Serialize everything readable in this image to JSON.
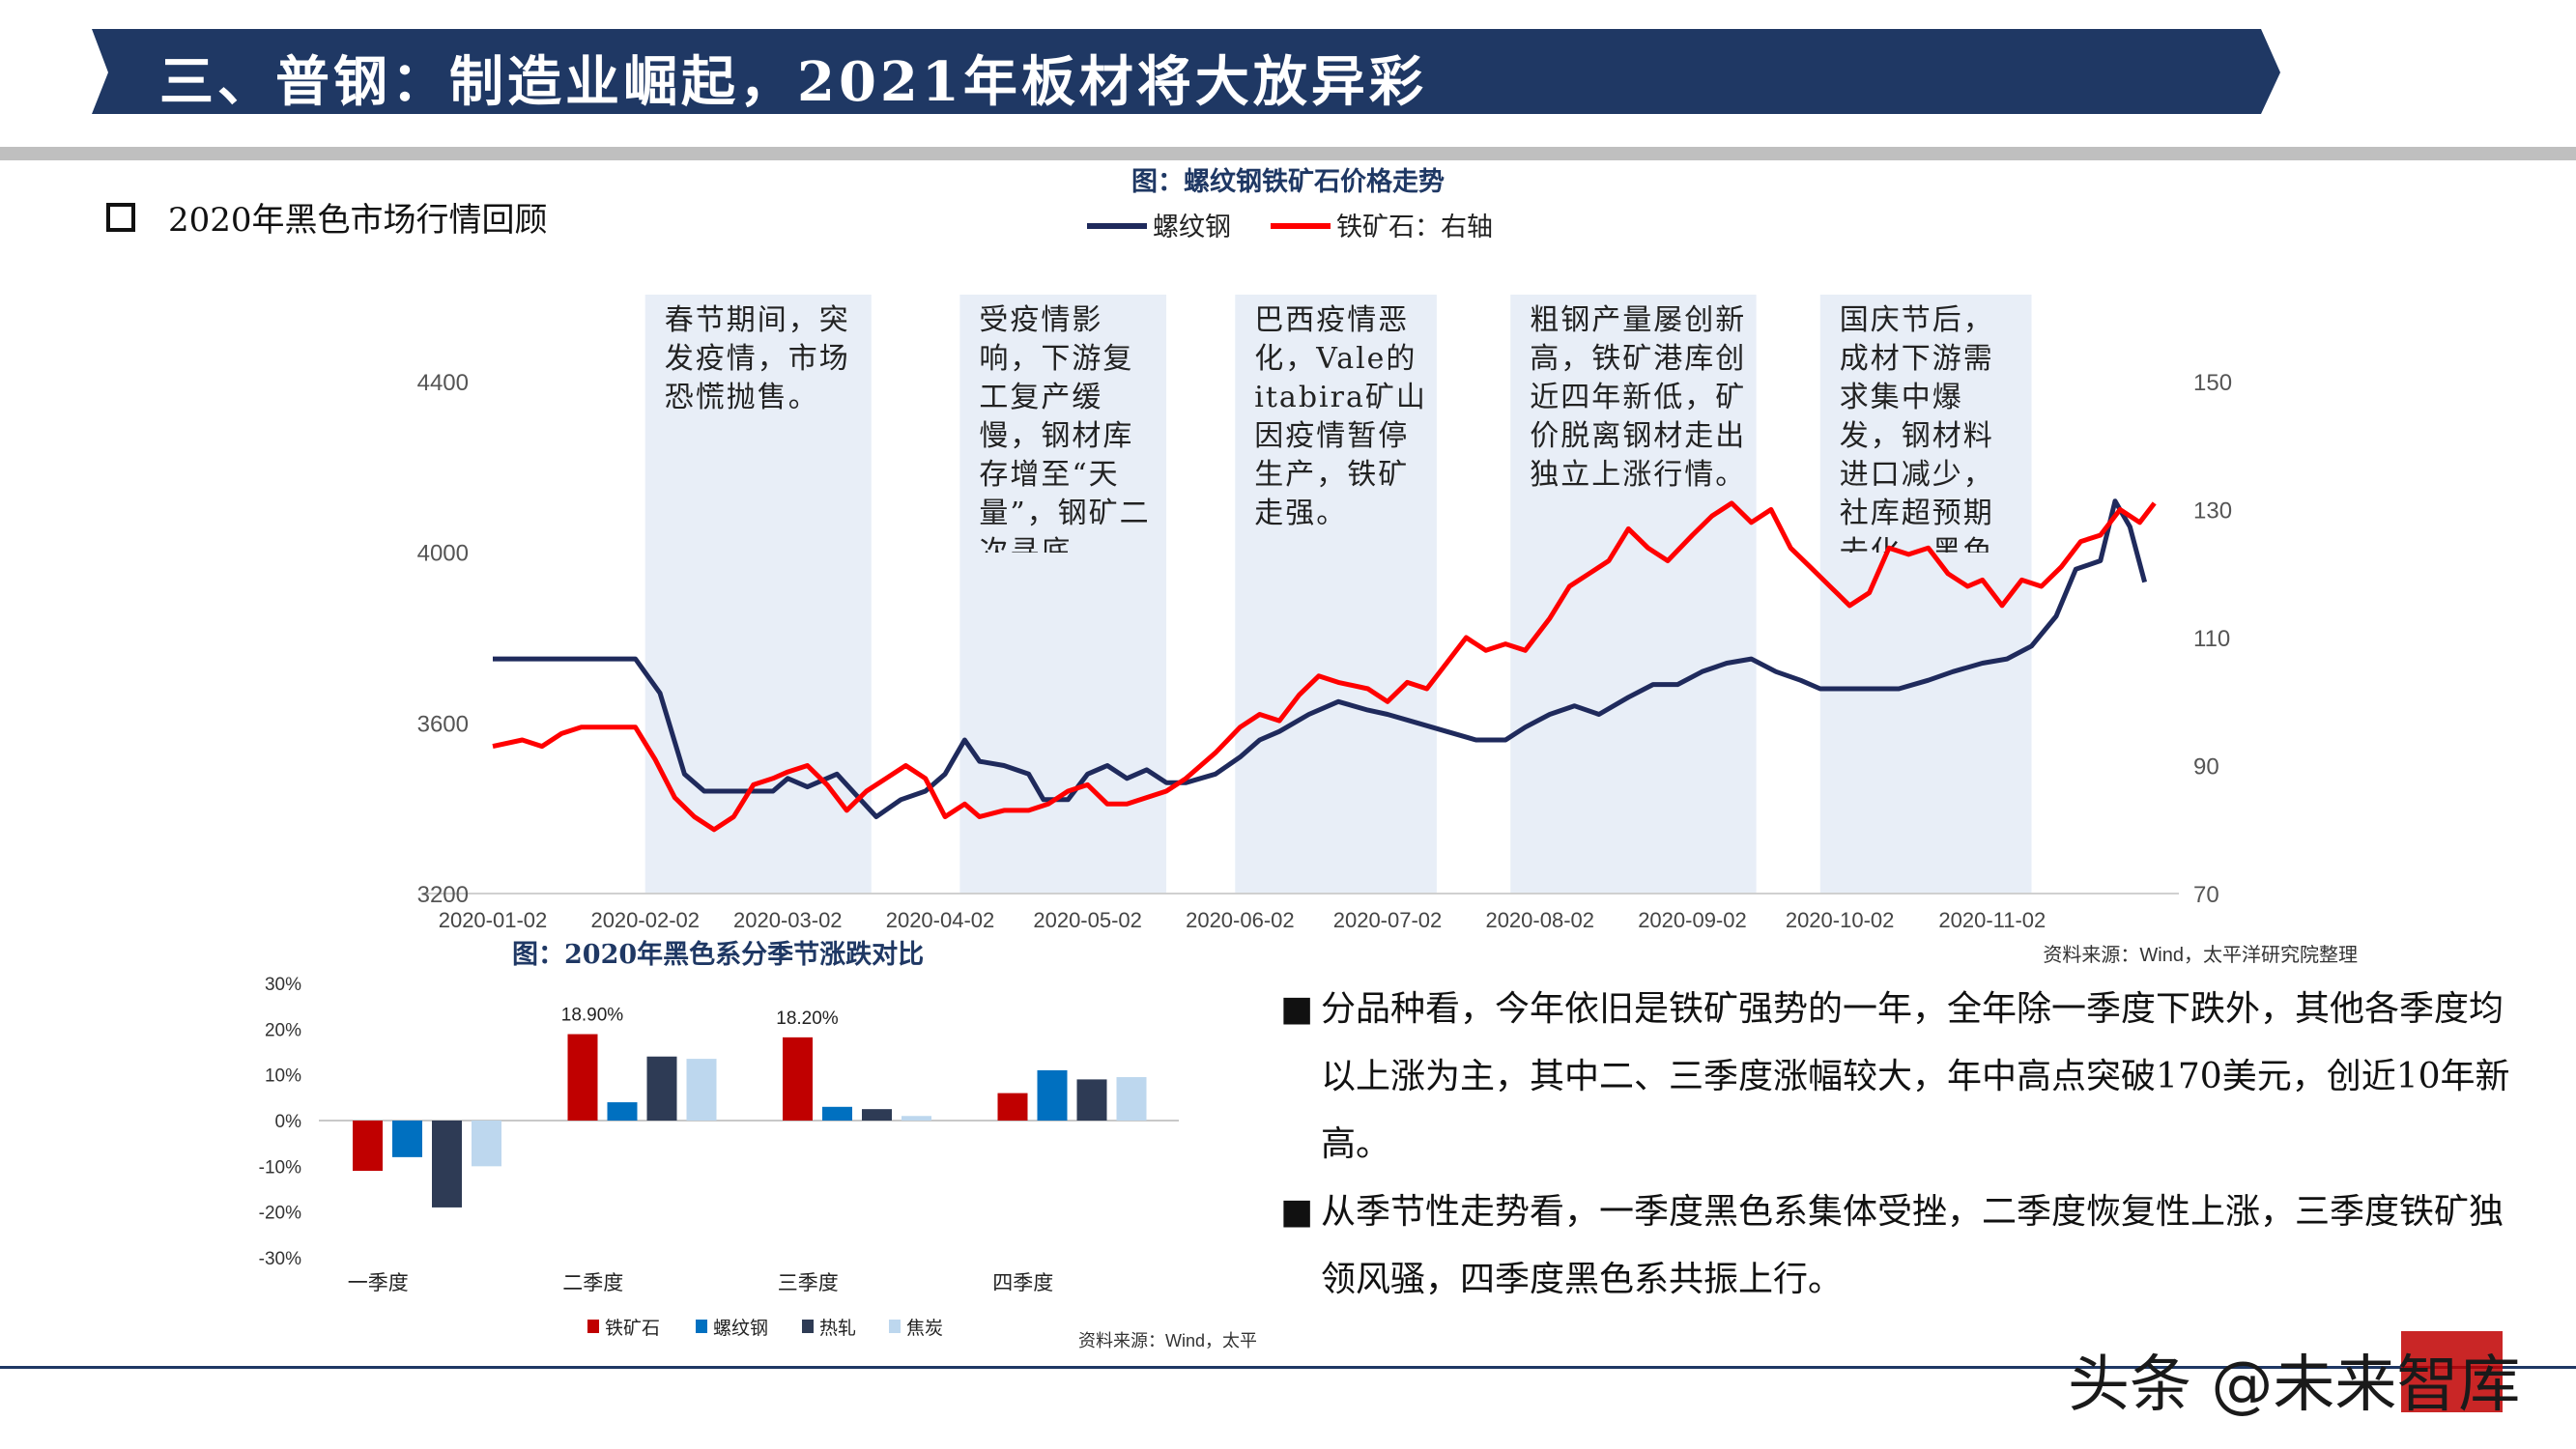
{
  "header": {
    "title": "三、普钢：制造业崛起，2021年板材将大放异彩",
    "banner_color": "#1f3864"
  },
  "section": {
    "heading": "2020年黑色市场行情回顾"
  },
  "chart_data": [
    {
      "type": "line",
      "title": "图：螺纹钢铁矿石价格走势",
      "source": "资料来源：Wind，太平洋研究院整理",
      "x_ticks": [
        "2020-01-02",
        "2020-02-02",
        "2020-03-02",
        "2020-04-02",
        "2020-05-02",
        "2020-06-02",
        "2020-07-02",
        "2020-08-02",
        "2020-09-02",
        "2020-10-02",
        "2020-11-02"
      ],
      "y_left": {
        "min": 3200,
        "max": 4400,
        "ticks": [
          3200,
          3600,
          4000,
          4400
        ]
      },
      "y_right": {
        "min": 70,
        "max": 150,
        "ticks": [
          70,
          90,
          110,
          130,
          150
        ]
      },
      "series": [
        {
          "name": "螺纹钢",
          "axis": "left",
          "color": "#1f2a5c",
          "points": [
            [
              "2020-01-02",
              3750
            ],
            [
              "2020-01-20",
              3750
            ],
            [
              "2020-01-31",
              3750
            ],
            [
              "2020-02-05",
              3670
            ],
            [
              "2020-02-10",
              3480
            ],
            [
              "2020-02-14",
              3440
            ],
            [
              "2020-02-20",
              3440
            ],
            [
              "2020-02-28",
              3440
            ],
            [
              "2020-03-02",
              3470
            ],
            [
              "2020-03-06",
              3450
            ],
            [
              "2020-03-12",
              3480
            ],
            [
              "2020-03-16",
              3430
            ],
            [
              "2020-03-20",
              3380
            ],
            [
              "2020-03-25",
              3420
            ],
            [
              "2020-03-30",
              3440
            ],
            [
              "2020-04-03",
              3480
            ],
            [
              "2020-04-07",
              3560
            ],
            [
              "2020-04-10",
              3510
            ],
            [
              "2020-04-15",
              3500
            ],
            [
              "2020-04-20",
              3480
            ],
            [
              "2020-04-23",
              3420
            ],
            [
              "2020-04-28",
              3420
            ],
            [
              "2020-05-02",
              3480
            ],
            [
              "2020-05-06",
              3500
            ],
            [
              "2020-05-10",
              3470
            ],
            [
              "2020-05-14",
              3490
            ],
            [
              "2020-05-18",
              3460
            ],
            [
              "2020-05-22",
              3460
            ],
            [
              "2020-05-28",
              3480
            ],
            [
              "2020-06-02",
              3520
            ],
            [
              "2020-06-06",
              3560
            ],
            [
              "2020-06-10",
              3580
            ],
            [
              "2020-06-16",
              3620
            ],
            [
              "2020-06-22",
              3650
            ],
            [
              "2020-06-28",
              3630
            ],
            [
              "2020-07-02",
              3620
            ],
            [
              "2020-07-08",
              3600
            ],
            [
              "2020-07-14",
              3580
            ],
            [
              "2020-07-20",
              3560
            ],
            [
              "2020-07-26",
              3560
            ],
            [
              "2020-07-30",
              3590
            ],
            [
              "2020-08-04",
              3620
            ],
            [
              "2020-08-09",
              3640
            ],
            [
              "2020-08-14",
              3620
            ],
            [
              "2020-08-20",
              3660
            ],
            [
              "2020-08-25",
              3690
            ],
            [
              "2020-08-30",
              3690
            ],
            [
              "2020-09-04",
              3720
            ],
            [
              "2020-09-09",
              3740
            ],
            [
              "2020-09-14",
              3750
            ],
            [
              "2020-09-19",
              3720
            ],
            [
              "2020-09-24",
              3700
            ],
            [
              "2020-09-28",
              3680
            ],
            [
              "2020-10-04",
              3680
            ],
            [
              "2020-10-14",
              3680
            ],
            [
              "2020-10-20",
              3700
            ],
            [
              "2020-10-25",
              3720
            ],
            [
              "2020-10-31",
              3740
            ],
            [
              "2020-11-05",
              3750
            ],
            [
              "2020-11-10",
              3780
            ],
            [
              "2020-11-15",
              3850
            ],
            [
              "2020-11-19",
              3960
            ],
            [
              "2020-11-24",
              3980
            ],
            [
              "2020-11-27",
              4120
            ],
            [
              "2020-11-30",
              4060
            ],
            [
              "2020-12-03",
              3930
            ]
          ]
        },
        {
          "name": "铁矿石：右轴",
          "axis": "right",
          "color": "#ff0000",
          "points": [
            [
              "2020-01-02",
              93
            ],
            [
              "2020-01-08",
              94
            ],
            [
              "2020-01-12",
              93
            ],
            [
              "2020-01-16",
              95
            ],
            [
              "2020-01-20",
              96
            ],
            [
              "2020-01-25",
              96
            ],
            [
              "2020-01-31",
              96
            ],
            [
              "2020-02-04",
              91
            ],
            [
              "2020-02-08",
              85
            ],
            [
              "2020-02-12",
              82
            ],
            [
              "2020-02-16",
              80
            ],
            [
              "2020-02-20",
              82
            ],
            [
              "2020-02-24",
              87
            ],
            [
              "2020-02-28",
              88
            ],
            [
              "2020-03-02",
              89
            ],
            [
              "2020-03-06",
              90
            ],
            [
              "2020-03-10",
              87
            ],
            [
              "2020-03-14",
              83
            ],
            [
              "2020-03-18",
              86
            ],
            [
              "2020-03-22",
              88
            ],
            [
              "2020-03-26",
              90
            ],
            [
              "2020-03-30",
              88
            ],
            [
              "2020-04-03",
              82
            ],
            [
              "2020-04-07",
              84
            ],
            [
              "2020-04-10",
              82
            ],
            [
              "2020-04-15",
              83
            ],
            [
              "2020-04-20",
              83
            ],
            [
              "2020-04-24",
              84
            ],
            [
              "2020-04-28",
              86
            ],
            [
              "2020-05-02",
              87
            ],
            [
              "2020-05-06",
              84
            ],
            [
              "2020-05-10",
              84
            ],
            [
              "2020-05-14",
              85
            ],
            [
              "2020-05-18",
              86
            ],
            [
              "2020-05-22",
              88
            ],
            [
              "2020-05-28",
              92
            ],
            [
              "2020-06-02",
              96
            ],
            [
              "2020-06-06",
              98
            ],
            [
              "2020-06-10",
              97
            ],
            [
              "2020-06-14",
              101
            ],
            [
              "2020-06-18",
              104
            ],
            [
              "2020-06-22",
              103
            ],
            [
              "2020-06-28",
              102
            ],
            [
              "2020-07-02",
              100
            ],
            [
              "2020-07-06",
              103
            ],
            [
              "2020-07-10",
              102
            ],
            [
              "2020-07-14",
              106
            ],
            [
              "2020-07-18",
              110
            ],
            [
              "2020-07-22",
              108
            ],
            [
              "2020-07-26",
              109
            ],
            [
              "2020-07-30",
              108
            ],
            [
              "2020-08-04",
              113
            ],
            [
              "2020-08-08",
              118
            ],
            [
              "2020-08-12",
              120
            ],
            [
              "2020-08-16",
              122
            ],
            [
              "2020-08-20",
              127
            ],
            [
              "2020-08-24",
              124
            ],
            [
              "2020-08-28",
              122
            ],
            [
              "2020-09-02",
              126
            ],
            [
              "2020-09-06",
              129
            ],
            [
              "2020-09-10",
              131
            ],
            [
              "2020-09-14",
              128
            ],
            [
              "2020-09-18",
              130
            ],
            [
              "2020-09-22",
              124
            ],
            [
              "2020-09-26",
              121
            ],
            [
              "2020-09-30",
              118
            ],
            [
              "2020-10-04",
              115
            ],
            [
              "2020-10-08",
              117
            ],
            [
              "2020-10-12",
              124
            ],
            [
              "2020-10-16",
              123
            ],
            [
              "2020-10-20",
              124
            ],
            [
              "2020-10-24",
              120
            ],
            [
              "2020-10-28",
              118
            ],
            [
              "2020-10-31",
              119
            ],
            [
              "2020-11-04",
              115
            ],
            [
              "2020-11-08",
              119
            ],
            [
              "2020-11-12",
              118
            ],
            [
              "2020-11-16",
              121
            ],
            [
              "2020-11-20",
              125
            ],
            [
              "2020-11-24",
              126
            ],
            [
              "2020-11-28",
              130
            ],
            [
              "2020-12-02",
              128
            ],
            [
              "2020-12-05",
              131
            ]
          ]
        }
      ],
      "annotations": [
        {
          "x_start": "2020-02-02",
          "x_end": "2020-03-19",
          "text": "春节期间，突发疫情，市场恐慌抛售。"
        },
        {
          "x_start": "2020-04-06",
          "x_end": "2020-05-18",
          "text": "受疫情影响，下游复工复产缓慢，钢材库存增至“天量”，钢矿二次寻底。"
        },
        {
          "x_start": "2020-06-01",
          "x_end": "2020-07-12",
          "text": "巴西疫情恶化，Vale的itabira矿山因疫情暂停生产，铁矿走强。"
        },
        {
          "x_start": "2020-07-27",
          "x_end": "2020-09-15",
          "text": "粗钢产量屡创新高，铁矿港库创近四年新低，矿价脱离钢材走出独立上涨行情。"
        },
        {
          "x_start": "2020-09-28",
          "x_end": "2020-11-10",
          "text": "国庆节后，成材下游需求集中爆发，钢材料进口减少，社库超预期去化，黑色系共振上行。"
        }
      ]
    },
    {
      "type": "bar",
      "title": "图：2020年黑色系分季节涨跌对比",
      "source": "资料来源：Wind，太平洋研究院整理",
      "categories": [
        "一季度",
        "二季度",
        "三季度",
        "四季度"
      ],
      "ylim": [
        -30,
        30
      ],
      "y_ticks": [
        "30%",
        "20%",
        "10%",
        "0%",
        "-10%",
        "-20%",
        "-30%"
      ],
      "series": [
        {
          "name": "铁矿石",
          "color": "#c00000",
          "values": [
            -11,
            18.9,
            18.2,
            6
          ]
        },
        {
          "name": "螺纹钢",
          "color": "#0070c0",
          "values": [
            -8,
            4,
            3,
            11
          ]
        },
        {
          "name": "热轧",
          "color": "#2e3b55",
          "values": [
            -19,
            14,
            2.5,
            9
          ]
        },
        {
          "name": "焦炭",
          "color": "#bdd7ee",
          "values": [
            -10,
            13.5,
            1,
            9.5
          ]
        }
      ],
      "data_labels": [
        {
          "series": "铁矿石",
          "category": "二季度",
          "text": "18.90%"
        },
        {
          "series": "铁矿石",
          "category": "三季度",
          "text": "18.20%"
        }
      ]
    }
  ],
  "bullets": [
    "分品种看，今年依旧是铁矿强势的一年，全年除一季度下跌外，其他各季度均以上涨为主，其中二、三季度涨幅较大，年中高点突破170美元，创近10年新高。",
    "从季节性走势看，一季度黑色系集体受挫，二季度恢复性上涨，三季度铁矿独领风骚，四季度黑色系共振上行。"
  ],
  "bullet_marker": "■",
  "watermark": "头条 @未来智库"
}
